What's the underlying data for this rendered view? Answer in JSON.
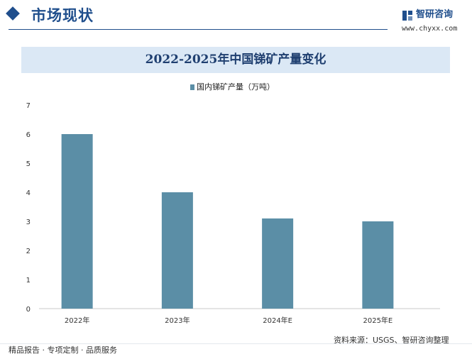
{
  "header": {
    "section_title": "市场现状",
    "brand_name": "智研咨询",
    "brand_url": "www.chyxx.com"
  },
  "chart_data": {
    "type": "bar",
    "title": "2022-2025年中国锑矿产量变化",
    "categories": [
      "2022年",
      "2023年",
      "2024年E",
      "2025年E"
    ],
    "series": [
      {
        "name": "国内锑矿产量（万吨）",
        "values": [
          6.0,
          4.0,
          3.1,
          3.0
        ],
        "color": "#5b8ea6"
      }
    ],
    "xlabel": "",
    "ylabel": "",
    "ylim": [
      0,
      7
    ],
    "yticks": [
      0,
      1,
      2,
      3,
      4,
      5,
      6,
      7
    ],
    "grid": false,
    "legend_position": "top-center"
  },
  "footer": {
    "tagline": "精品报告 · 专项定制 · 品质服务",
    "source": "资料来源：USGS、智研咨询整理"
  }
}
